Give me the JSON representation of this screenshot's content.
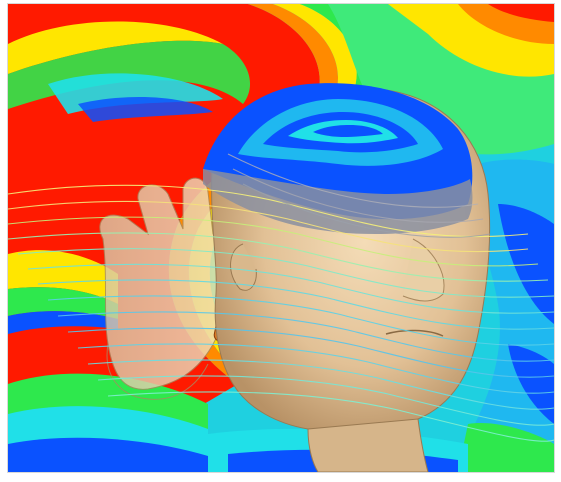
{
  "image": {
    "subject": "simulation-field-around-head-with-hand-and-phone",
    "colors": {
      "red": "#ff1a00",
      "orange": "#ff8a00",
      "yellow": "#ffe600",
      "green": "#2ee84d",
      "cyan": "#20e0e8",
      "blue": "#0a52ff",
      "skin": "#e8c9a0",
      "phone": "#e07a1e"
    }
  }
}
